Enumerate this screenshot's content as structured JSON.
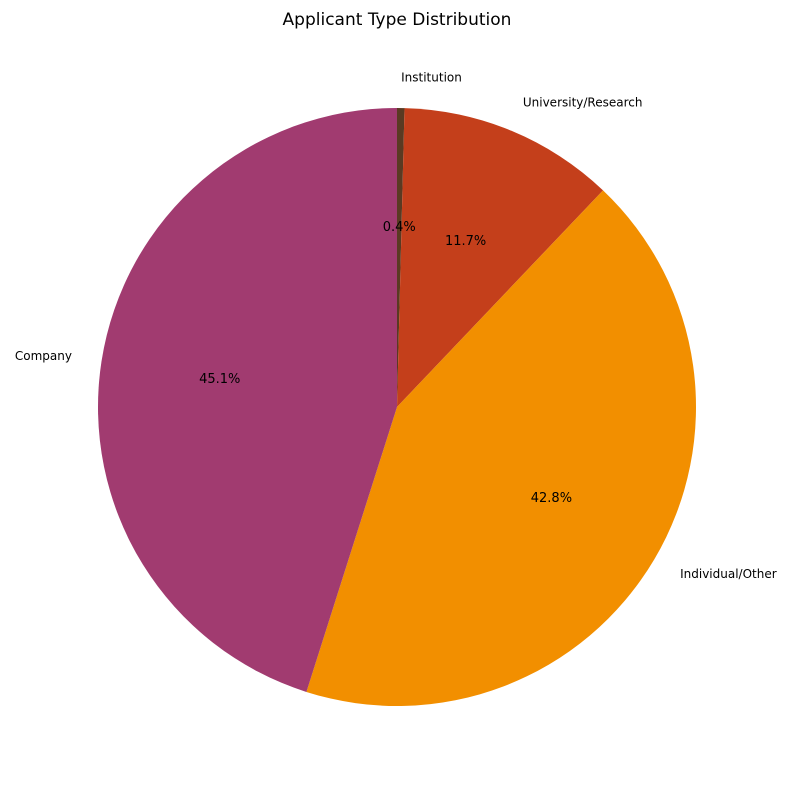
{
  "chart_data": {
    "type": "pie",
    "title": "Applicant Type Distribution",
    "start_angle_deg": 90,
    "direction": "clockwise",
    "slices": [
      {
        "label": "Institution",
        "value": 0.4,
        "pct_label": "0.4%",
        "color": "#5a3a22"
      },
      {
        "label": "University/Research",
        "value": 11.7,
        "pct_label": "11.7%",
        "color": "#c43f1b"
      },
      {
        "label": "Individual/Other",
        "value": 42.8,
        "pct_label": "42.8%",
        "color": "#f28f00"
      },
      {
        "label": "Company",
        "value": 45.1,
        "pct_label": "45.1%",
        "color": "#a13b70"
      }
    ]
  }
}
